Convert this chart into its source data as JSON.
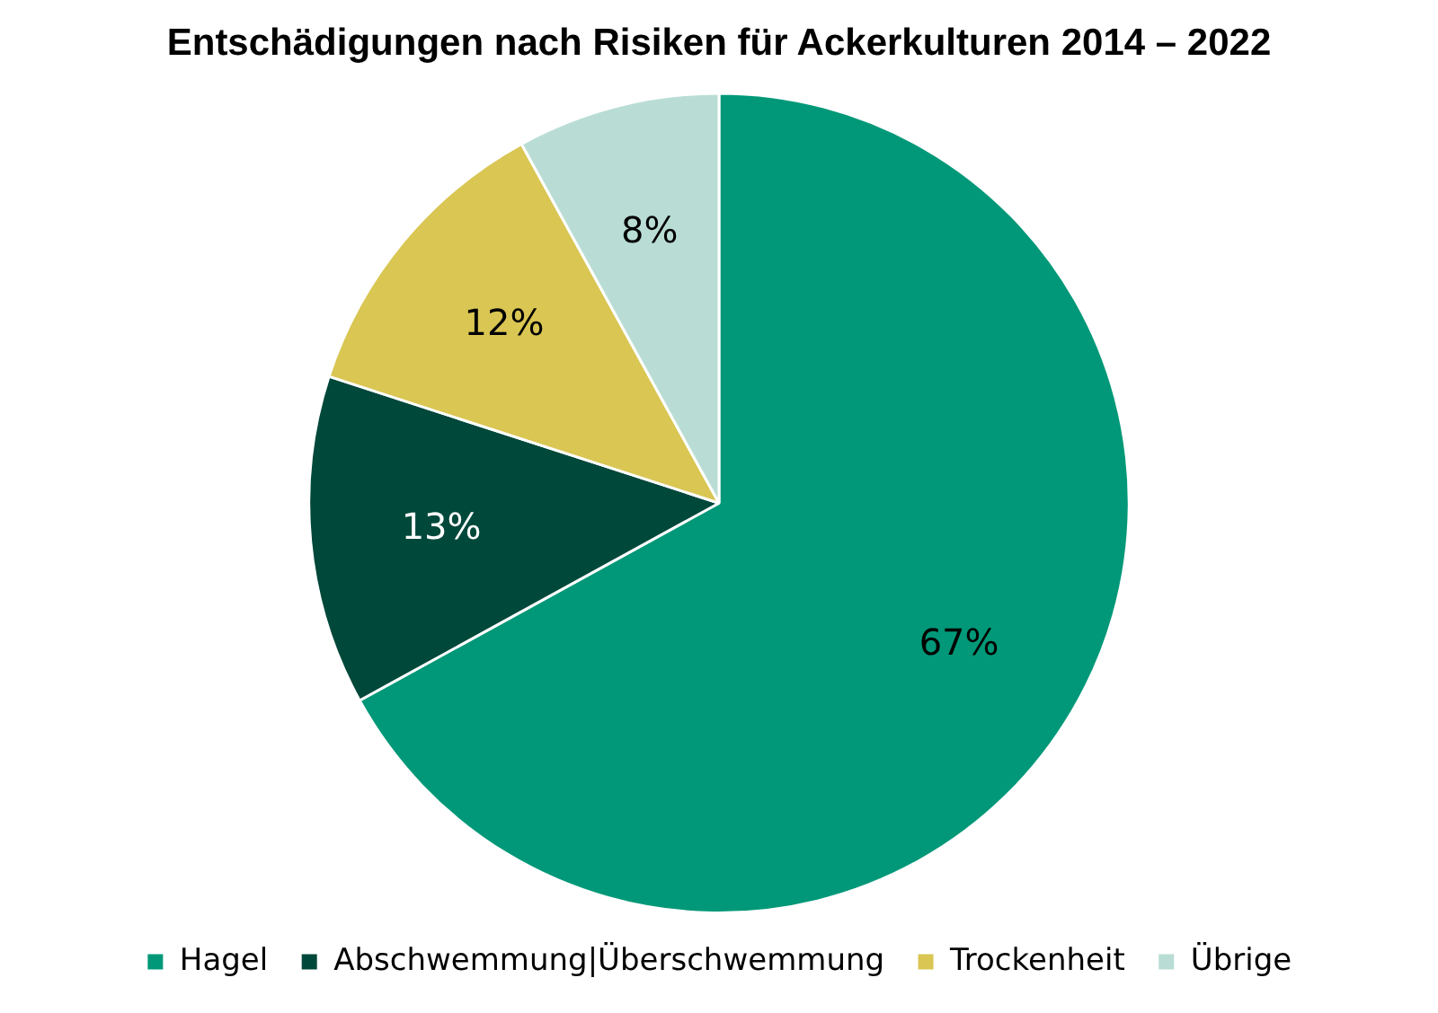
{
  "chart_data": {
    "type": "pie",
    "title": "Entschädigungen nach Risiken für Ackerkulturen 2014 – 2022",
    "categories": [
      "Hagel",
      "Abschwemmung|Überschwemmung",
      "Trockenheit",
      "Übrige"
    ],
    "values": [
      67,
      13,
      12,
      8
    ],
    "colors": [
      "#009878",
      "#00483a",
      "#d9c653",
      "#b9ddd5"
    ],
    "value_labels": [
      "67%",
      "13%",
      "12%",
      "8%"
    ],
    "legend": "bottom"
  }
}
